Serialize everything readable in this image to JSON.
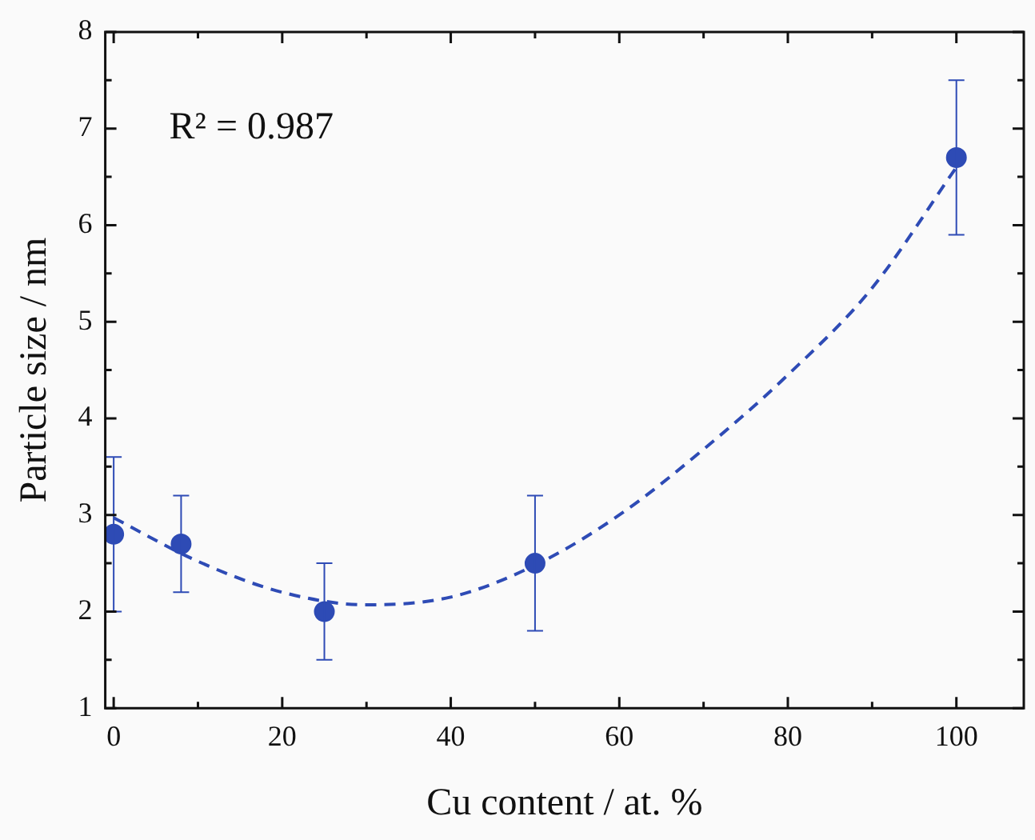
{
  "chart_data": {
    "type": "scatter",
    "xlabel": "Cu content / at. %",
    "ylabel": "Particle size / nm",
    "annotations": [
      "R² = 0.987"
    ],
    "xlim": [
      -1,
      108
    ],
    "xticks": [
      0,
      {
        "value": 10,
        "label": null
      },
      20,
      {
        "value": 30,
        "label": null
      },
      40,
      {
        "value": 50,
        "label": null
      },
      60,
      {
        "value": 70,
        "label": null
      },
      80,
      {
        "value": 90,
        "label": null
      },
      100
    ],
    "ylim": [
      1,
      8
    ],
    "yticks": [
      1,
      {
        "value": 1.5,
        "label": null
      },
      2,
      {
        "value": 2.5,
        "label": null
      },
      3,
      {
        "value": 3.5,
        "label": null
      },
      4,
      {
        "value": 4.5,
        "label": null
      },
      5,
      {
        "value": 5.5,
        "label": null
      },
      6,
      {
        "value": 6.5,
        "label": null
      },
      7,
      {
        "value": 7.5,
        "label": null
      },
      8
    ],
    "grid": false,
    "legend": false,
    "series": [
      {
        "color": "#2e4bb5",
        "marker": "circle",
        "x": [
          0,
          8,
          25,
          50,
          100
        ],
        "values": [
          2.8,
          2.7,
          2.0,
          2.5,
          6.7
        ],
        "errors": [
          [
            2.0,
            3.6
          ],
          [
            2.2,
            3.2
          ],
          [
            1.5,
            2.5
          ],
          [
            1.8,
            3.2
          ],
          [
            5.9,
            7.5
          ]
        ]
      },
      {
        "type": "line",
        "color": "#2e4bb5",
        "line_style": "dashed",
        "marker": "none",
        "x": [
          0,
          10,
          20,
          30,
          40,
          50,
          60,
          70,
          80,
          90,
          100
        ],
        "values": [
          2.97,
          2.52,
          2.2,
          2.07,
          2.15,
          2.48,
          3.0,
          3.68,
          4.45,
          5.35,
          6.6
        ]
      }
    ]
  }
}
